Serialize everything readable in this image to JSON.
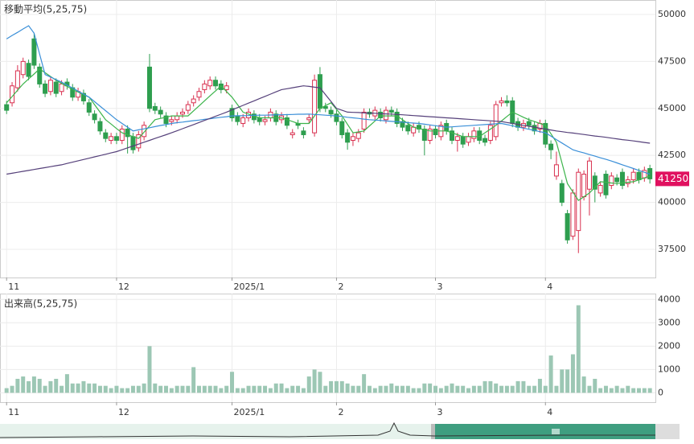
{
  "chart_data": [
    {
      "type": "candlestick",
      "title": "移動平均(5,25,75)",
      "open": [
        45200,
        45300,
        46100,
        46800,
        47400,
        48700,
        47200,
        46300,
        45900,
        46400,
        45900,
        46400,
        46100,
        45600,
        45800,
        45300,
        44700,
        44300,
        43700,
        43300,
        43500,
        43300,
        43900,
        43500,
        42900,
        43500,
        47200,
        45100,
        44900,
        44600,
        44300,
        44400,
        44700,
        44900,
        45300,
        45600,
        46000,
        46200,
        46500,
        46300,
        46000,
        45000,
        44600,
        44200,
        44500,
        44700,
        44500,
        44300,
        44500,
        44700,
        44400,
        44500,
        43600,
        44200,
        43800,
        44400,
        43700,
        46800,
        45100,
        44900,
        44700,
        44300,
        43700,
        43300,
        43400,
        43900,
        44800,
        44600,
        44800,
        44400,
        44900,
        44800,
        44300,
        44100,
        43700,
        44100,
        43900,
        43300,
        43900,
        43500,
        44200,
        43800,
        43300,
        43500,
        43200,
        43400,
        43800,
        43400,
        43300,
        43500,
        45300,
        45400,
        45400,
        44300,
        44000,
        44300,
        44100,
        43900,
        44200,
        43100,
        41400,
        41000,
        39400,
        38200,
        38500,
        40300,
        40700,
        41400,
        40500,
        41500,
        40900,
        41300,
        41600,
        41000,
        41200,
        41600,
        41300,
        41800
      ],
      "high": [
        45400,
        46400,
        47300,
        47700,
        47600,
        49000,
        47400,
        46500,
        46700,
        46600,
        46500,
        46600,
        46300,
        46100,
        46000,
        45500,
        44900,
        44500,
        43900,
        43700,
        43700,
        44100,
        44100,
        43700,
        43800,
        44300,
        47900,
        45300,
        45100,
        44800,
        44600,
        44800,
        45000,
        45400,
        45700,
        46100,
        46500,
        46700,
        46700,
        46500,
        46400,
        45200,
        44800,
        44700,
        45000,
        44900,
        44700,
        44600,
        45000,
        44900,
        44800,
        44700,
        43900,
        44400,
        44000,
        44700,
        46800,
        47200,
        45300,
        45100,
        44900,
        44500,
        43900,
        43700,
        43900,
        45000,
        45000,
        45100,
        45000,
        45100,
        45100,
        45000,
        44500,
        44300,
        44200,
        44300,
        44100,
        44100,
        44100,
        44300,
        44400,
        44000,
        43700,
        43700,
        43700,
        44000,
        44000,
        43600,
        44300,
        45400,
        45600,
        45700,
        45600,
        44500,
        44400,
        44500,
        44300,
        44400,
        44400,
        43300,
        42700,
        41200,
        39600,
        40700,
        41800,
        41700,
        42400,
        41600,
        41100,
        41700,
        41600,
        41500,
        41800,
        41400,
        41800,
        41800,
        41900,
        42000
      ],
      "low": [
        44700,
        45100,
        45900,
        46600,
        46500,
        47100,
        46100,
        45600,
        45700,
        45600,
        45700,
        46000,
        45400,
        45400,
        45200,
        44600,
        44200,
        43600,
        43200,
        43100,
        43100,
        43100,
        42600,
        42600,
        42700,
        43300,
        44800,
        44700,
        44500,
        44000,
        44100,
        44200,
        44500,
        44700,
        45100,
        45400,
        45800,
        46000,
        46000,
        45800,
        45800,
        44300,
        44100,
        44000,
        44300,
        44200,
        44100,
        44100,
        44300,
        44100,
        44200,
        43900,
        43400,
        43900,
        43400,
        44200,
        43500,
        44800,
        44800,
        44500,
        44100,
        43400,
        42800,
        43000,
        43200,
        43700,
        44500,
        44400,
        44300,
        44200,
        44600,
        44000,
        43800,
        43600,
        43500,
        43700,
        42500,
        43100,
        43400,
        43300,
        43600,
        43100,
        42700,
        42900,
        43000,
        43200,
        43100,
        43000,
        43100,
        43300,
        45100,
        45100,
        44000,
        43800,
        43800,
        43900,
        43600,
        43700,
        42900,
        42300,
        41200,
        39800,
        37800,
        38000,
        37300,
        40100,
        39300,
        40000,
        40300,
        40200,
        40700,
        40900,
        40700,
        40800,
        41000,
        41000,
        41100,
        41000
      ],
      "close": [
        44900,
        46200,
        47000,
        47500,
        46700,
        47300,
        46300,
        45800,
        46500,
        45800,
        46300,
        46200,
        45600,
        45900,
        45400,
        44800,
        44400,
        43800,
        43400,
        43500,
        43300,
        43900,
        43500,
        42800,
        43600,
        44100,
        45000,
        44900,
        44700,
        44200,
        44400,
        44600,
        44800,
        45200,
        45500,
        45900,
        46300,
        46500,
        46200,
        46000,
        46200,
        44500,
        44300,
        44500,
        44800,
        44400,
        44300,
        44400,
        44800,
        44300,
        44600,
        44100,
        43700,
        44100,
        43600,
        44500,
        46500,
        45000,
        45000,
        44700,
        44300,
        43600,
        43200,
        43500,
        43700,
        44800,
        44700,
        44900,
        44500,
        44900,
        44800,
        44200,
        44000,
        43800,
        44000,
        43900,
        43300,
        43900,
        43600,
        44100,
        43800,
        43300,
        43500,
        43100,
        43500,
        43800,
        43300,
        43200,
        44100,
        45200,
        45400,
        45300,
        44200,
        44000,
        44200,
        44100,
        43800,
        44200,
        43100,
        42800,
        42000,
        40000,
        38000,
        40500,
        41600,
        41500,
        42200,
        40700,
        40900,
        40400,
        41400,
        41100,
        40900,
        41200,
        41600,
        41200,
        41700,
        41250
      ],
      "up_color": "#d9304f",
      "down_color": "#2e9e4f",
      "series": [
        {
          "color": "#3cb44b",
          "values": [
            45300,
            45630,
            45970,
            46300,
            46570,
            46830,
            47100,
            46900,
            46700,
            46500,
            46330,
            46170,
            46000,
            45870,
            45730,
            45600,
            45200,
            44800,
            44400,
            44170,
            43930,
            43700,
            43600,
            43500,
            43400,
            43730,
            44070,
            44400,
            44470,
            44530,
            44600,
            44600,
            44600,
            44600,
            44870,
            45130,
            45400,
            45670,
            45930,
            46200,
            45900,
            45600,
            45200,
            44800,
            44700,
            44600,
            44500,
            44500,
            44500,
            44500,
            44500,
            44400,
            44300,
            44200,
            44200,
            44200,
            44600,
            45000,
            45150,
            45300,
            44950,
            44600,
            44150,
            43700,
            43750,
            43800,
            44070,
            44330,
            44600,
            44600,
            44600,
            44600,
            44400,
            44200,
            44000,
            43930,
            43870,
            43800,
            43800,
            43800,
            43800,
            43700,
            43600,
            43500,
            43500,
            43500,
            43500,
            43700,
            43900,
            44100,
            44330,
            44570,
            44800,
            44670,
            44530,
            44400,
            44300,
            44200,
            44100,
            43650,
            43200,
            42100,
            41000,
            40550,
            40100,
            40300,
            40500,
            40800,
            41100,
            41070,
            41030,
            41000,
            41030,
            41070,
            41100,
            41200,
            41300,
            41400
          ]
        },
        {
          "color": "#3a8fd8",
          "values": [
            48700,
            48880,
            49050,
            49230,
            49400,
            49000,
            47900,
            46800,
            46670,
            46530,
            46400,
            46240,
            46080,
            45920,
            45760,
            45600,
            45360,
            45120,
            44880,
            44640,
            44400,
            44200,
            44000,
            43800,
            43860,
            43910,
            43970,
            44030,
            44090,
            44140,
            44200,
            44240,
            44270,
            44310,
            44350,
            44380,
            44420,
            44450,
            44490,
            44530,
            44560,
            44600,
            44610,
            44610,
            44620,
            44630,
            44640,
            44640,
            44650,
            44660,
            44660,
            44670,
            44680,
            44690,
            44690,
            44700,
            44680,
            44660,
            44640,
            44620,
            44600,
            44570,
            44530,
            44500,
            44470,
            44430,
            44400,
            44380,
            44360,
            44330,
            44310,
            44290,
            44270,
            44240,
            44220,
            44200,
            44160,
            44120,
            44080,
            44040,
            44000,
            44020,
            44040,
            44060,
            44080,
            44100,
            44120,
            44140,
            44160,
            44180,
            44200,
            44140,
            44080,
            44010,
            43950,
            43890,
            43830,
            43760,
            43700,
            43520,
            43340,
            43160,
            42980,
            42800,
            42710,
            42630,
            42540,
            42460,
            42370,
            42290,
            42200,
            42100,
            42000,
            41900,
            41800,
            41700,
            41600,
            41500
          ]
        },
        {
          "color": "#55407a",
          "values": [
            41500,
            41550,
            41600,
            41650,
            41700,
            41750,
            41800,
            41850,
            41900,
            41950,
            42000,
            42070,
            42140,
            42210,
            42280,
            42350,
            42420,
            42490,
            42560,
            42630,
            42700,
            42800,
            42900,
            43000,
            43100,
            43200,
            43300,
            43400,
            43500,
            43600,
            43700,
            43810,
            43920,
            44030,
            44140,
            44250,
            44360,
            44470,
            44580,
            44690,
            44800,
            44920,
            45040,
            45160,
            45280,
            45400,
            45520,
            45640,
            45760,
            45880,
            46000,
            46050,
            46100,
            46150,
            46200,
            46170,
            46130,
            46100,
            45730,
            45370,
            45000,
            44900,
            44800,
            44790,
            44780,
            44760,
            44750,
            44740,
            44720,
            44710,
            44700,
            44680,
            44660,
            44640,
            44620,
            44600,
            44580,
            44560,
            44540,
            44520,
            44500,
            44480,
            44460,
            44440,
            44420,
            44400,
            44380,
            44360,
            44340,
            44320,
            44300,
            44250,
            44200,
            44150,
            44100,
            44050,
            44000,
            43950,
            43900,
            43850,
            43800,
            43760,
            43720,
            43690,
            43650,
            43610,
            43570,
            43530,
            43500,
            43460,
            43420,
            43380,
            43340,
            43310,
            43270,
            43230,
            43190,
            43150
          ]
        }
      ],
      "last_price": 41250,
      "last_price_color": "#e0115f",
      "xlim": [
        -1.2,
        118
      ],
      "xticks": [
        {
          "value": 0,
          "label": "11"
        },
        {
          "value": 20,
          "label": "12"
        },
        {
          "value": 41,
          "label": "2025/1"
        },
        {
          "value": 60,
          "label": "2"
        },
        {
          "value": 78,
          "label": "3"
        },
        {
          "value": 98,
          "label": "4"
        }
      ],
      "ylim": [
        36000,
        50770
      ],
      "yticks": [
        37500,
        40000,
        42500,
        45000,
        47500,
        50000
      ],
      "grid": true
    },
    {
      "type": "bar",
      "title": "出来高(5,25,75)",
      "values": [
        200,
        300,
        600,
        700,
        500,
        700,
        600,
        300,
        500,
        600,
        300,
        800,
        400,
        400,
        500,
        400,
        400,
        300,
        300,
        200,
        300,
        200,
        200,
        300,
        300,
        400,
        2000,
        400,
        300,
        300,
        200,
        300,
        300,
        300,
        1100,
        300,
        300,
        300,
        300,
        200,
        300,
        900,
        200,
        200,
        300,
        300,
        300,
        300,
        200,
        400,
        400,
        200,
        300,
        300,
        200,
        700,
        1000,
        900,
        300,
        500,
        500,
        500,
        400,
        300,
        300,
        800,
        300,
        200,
        300,
        300,
        400,
        300,
        300,
        300,
        200,
        200,
        400,
        400,
        300,
        200,
        300,
        400,
        300,
        300,
        200,
        300,
        300,
        500,
        500,
        400,
        300,
        300,
        300,
        500,
        500,
        300,
        300,
        600,
        300,
        1600,
        300,
        1000,
        1000,
        1650,
        3750,
        700,
        300,
        600,
        200,
        300,
        200,
        300,
        200,
        300,
        200,
        200,
        200,
        200
      ],
      "color": "#9cc7b4",
      "xlim": [
        -1.2,
        118
      ],
      "xticks": [
        {
          "value": 0,
          "label": "11"
        },
        {
          "value": 20,
          "label": "12"
        },
        {
          "value": 41,
          "label": "2025/1"
        },
        {
          "value": 60,
          "label": "2"
        },
        {
          "value": 78,
          "label": "3"
        },
        {
          "value": 98,
          "label": "4"
        }
      ],
      "ylim": [
        -400,
        4250
      ],
      "yticks": [
        0,
        1000,
        2000,
        3000,
        4000
      ],
      "grid": true
    }
  ]
}
